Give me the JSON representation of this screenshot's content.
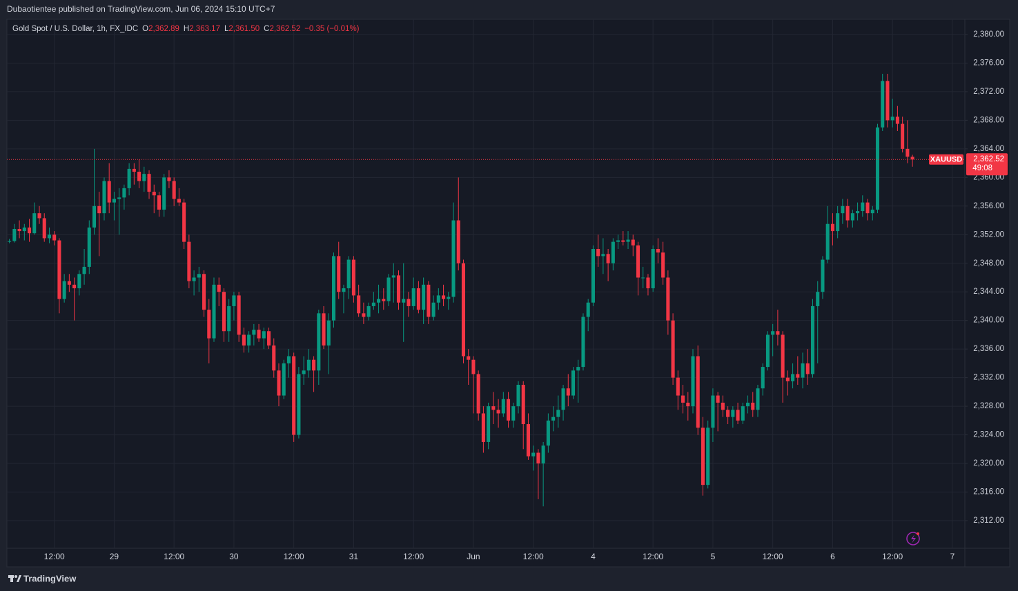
{
  "header": {
    "text": "Dubaotientee published on TradingView.com, Jun 06, 2024 15:10 UTC+7"
  },
  "footer": {
    "brand": "TradingView"
  },
  "chart_data": {
    "type": "candlestick",
    "legend": {
      "name": "Gold Spot / U.S. Dollar, 1h, FX_IDC",
      "open_label": "O",
      "open": "2,362.89",
      "high_label": "H",
      "high": "2,363.17",
      "low_label": "L",
      "low": "2,361.50",
      "close_label": "C",
      "close": "2,362.52",
      "change": "−0.35 (−0.01%)"
    },
    "price_tag": {
      "symbol": "XAUUSD",
      "price": "2,362.52",
      "countdown": "49:08"
    },
    "up_color": "#089981",
    "down_color": "#f23645",
    "grid": true,
    "xlim": [
      0.5,
      192.5
    ],
    "xticks": [
      {
        "value": 10,
        "label": "12:00"
      },
      {
        "value": 22,
        "label": "29"
      },
      {
        "value": 34,
        "label": "12:00"
      },
      {
        "value": 46,
        "label": "30"
      },
      {
        "value": 58,
        "label": "12:00"
      },
      {
        "value": 70,
        "label": "31"
      },
      {
        "value": 82,
        "label": "12:00"
      },
      {
        "value": 94,
        "label": "Jun"
      },
      {
        "value": 106,
        "label": "12:00"
      },
      {
        "value": 118,
        "label": "4"
      },
      {
        "value": 130,
        "label": "12:00"
      },
      {
        "value": 142,
        "label": "5"
      },
      {
        "value": 154,
        "label": "12:00"
      },
      {
        "value": 166,
        "label": "6"
      },
      {
        "value": 178,
        "label": "12:00"
      },
      {
        "value": 190,
        "label": "7"
      }
    ],
    "ylim": [
      2308.14,
      2382.12
    ],
    "yticks": [
      {
        "value": 2312,
        "label": "2,312.00"
      },
      {
        "value": 2316,
        "label": "2,316.00"
      },
      {
        "value": 2320,
        "label": "2,320.00"
      },
      {
        "value": 2324,
        "label": "2,324.00"
      },
      {
        "value": 2328,
        "label": "2,328.00"
      },
      {
        "value": 2332,
        "label": "2,332.00"
      },
      {
        "value": 2336,
        "label": "2,336.00"
      },
      {
        "value": 2340,
        "label": "2,340.00"
      },
      {
        "value": 2344,
        "label": "2,344.00"
      },
      {
        "value": 2348,
        "label": "2,348.00"
      },
      {
        "value": 2352,
        "label": "2,352.00"
      },
      {
        "value": 2356,
        "label": "2,356.00"
      },
      {
        "value": 2360,
        "label": "2,360.00"
      },
      {
        "value": 2364,
        "label": "2,364.00"
      },
      {
        "value": 2368,
        "label": "2,368.00"
      },
      {
        "value": 2372,
        "label": "2,372.00"
      },
      {
        "value": 2376,
        "label": "2,376.00"
      },
      {
        "value": 2380,
        "label": "2,380.00"
      }
    ],
    "ohlc": [
      [
        2351.0,
        2351.3,
        2350.8,
        2351.0
      ],
      [
        2351.0,
        2351.4,
        2350.8,
        2351.1
      ],
      [
        2351.1,
        2353.5,
        2350.9,
        2352.8
      ],
      [
        2352.8,
        2354.0,
        2351.5,
        2352.5
      ],
      [
        2352.5,
        2353.5,
        2351.2,
        2353.0
      ],
      [
        2353.0,
        2354.2,
        2351.0,
        2352.2
      ],
      [
        2352.2,
        2356.5,
        2352.0,
        2355.0
      ],
      [
        2355.0,
        2356.0,
        2353.5,
        2354.3
      ],
      [
        2354.3,
        2355.0,
        2351.0,
        2351.5
      ],
      [
        2351.5,
        2353.0,
        2350.8,
        2352.0
      ],
      [
        2352.0,
        2352.5,
        2350.5,
        2351.2
      ],
      [
        2351.2,
        2351.5,
        2341.0,
        2343.0
      ],
      [
        2343.0,
        2346.5,
        2342.5,
        2345.5
      ],
      [
        2345.5,
        2346.5,
        2344.0,
        2345.0
      ],
      [
        2345.0,
        2346.0,
        2340.0,
        2344.5
      ],
      [
        2344.5,
        2347.0,
        2343.5,
        2346.5
      ],
      [
        2346.5,
        2350.0,
        2345.0,
        2347.5
      ],
      [
        2347.5,
        2354.0,
        2346.5,
        2353.0
      ],
      [
        2353.0,
        2364.0,
        2352.0,
        2356.0
      ],
      [
        2356.0,
        2358.0,
        2349.0,
        2355.0
      ],
      [
        2355.0,
        2360.0,
        2354.0,
        2359.5
      ],
      [
        2359.5,
        2362.0,
        2355.0,
        2356.5
      ],
      [
        2356.5,
        2358.0,
        2354.0,
        2357.0
      ],
      [
        2357.0,
        2358.5,
        2352.0,
        2357.2
      ],
      [
        2357.2,
        2359.0,
        2355.5,
        2358.5
      ],
      [
        2358.5,
        2362.0,
        2357.5,
        2361.2
      ],
      [
        2361.2,
        2362.0,
        2359.0,
        2360.8
      ],
      [
        2360.8,
        2362.5,
        2358.5,
        2359.5
      ],
      [
        2359.5,
        2361.5,
        2358.0,
        2360.5
      ],
      [
        2360.5,
        2361.0,
        2357.0,
        2358.0
      ],
      [
        2358.0,
        2359.0,
        2355.0,
        2357.5
      ],
      [
        2357.5,
        2358.0,
        2354.5,
        2355.5
      ],
      [
        2355.5,
        2360.5,
        2354.5,
        2360.0
      ],
      [
        2360.0,
        2361.0,
        2358.5,
        2359.5
      ],
      [
        2359.5,
        2360.0,
        2356.0,
        2357.0
      ],
      [
        2357.0,
        2358.5,
        2356.0,
        2356.5
      ],
      [
        2356.5,
        2357.0,
        2350.0,
        2351.0
      ],
      [
        2351.0,
        2352.0,
        2344.5,
        2345.5
      ],
      [
        2345.5,
        2347.0,
        2343.5,
        2346.0
      ],
      [
        2346.0,
        2347.5,
        2344.0,
        2346.5
      ],
      [
        2346.5,
        2347.0,
        2340.5,
        2341.5
      ],
      [
        2341.5,
        2343.0,
        2334.0,
        2337.5
      ],
      [
        2337.5,
        2346.0,
        2337.0,
        2345.0
      ],
      [
        2345.0,
        2346.0,
        2342.0,
        2344.0
      ],
      [
        2344.0,
        2344.5,
        2337.0,
        2338.5
      ],
      [
        2338.5,
        2343.0,
        2337.0,
        2342.0
      ],
      [
        2342.0,
        2344.0,
        2340.0,
        2343.5
      ],
      [
        2343.5,
        2344.0,
        2337.0,
        2338.0
      ],
      [
        2338.0,
        2339.0,
        2335.5,
        2336.5
      ],
      [
        2336.5,
        2338.5,
        2335.5,
        2338.0
      ],
      [
        2338.0,
        2339.5,
        2336.5,
        2338.7
      ],
      [
        2338.7,
        2339.5,
        2337.0,
        2337.5
      ],
      [
        2337.5,
        2339.0,
        2336.0,
        2338.5
      ],
      [
        2338.5,
        2339.0,
        2336.0,
        2336.5
      ],
      [
        2336.5,
        2337.5,
        2332.0,
        2333.0
      ],
      [
        2333.0,
        2334.0,
        2328.0,
        2329.5
      ],
      [
        2329.5,
        2334.5,
        2329.0,
        2334.0
      ],
      [
        2334.0,
        2336.0,
        2332.0,
        2335.0
      ],
      [
        2335.0,
        2335.5,
        2323.0,
        2324.0
      ],
      [
        2324.0,
        2333.5,
        2323.5,
        2332.5
      ],
      [
        2332.5,
        2335.0,
        2331.0,
        2333.0
      ],
      [
        2333.0,
        2336.0,
        2332.0,
        2334.5
      ],
      [
        2334.5,
        2335.0,
        2330.0,
        2333.0
      ],
      [
        2333.0,
        2341.5,
        2331.0,
        2341.0
      ],
      [
        2341.0,
        2342.0,
        2336.0,
        2336.5
      ],
      [
        2336.5,
        2341.0,
        2332.5,
        2340.0
      ],
      [
        2340.0,
        2349.5,
        2339.0,
        2349.0
      ],
      [
        2349.0,
        2351.0,
        2343.0,
        2344.0
      ],
      [
        2344.0,
        2345.0,
        2341.0,
        2344.5
      ],
      [
        2344.5,
        2349.0,
        2343.0,
        2348.5
      ],
      [
        2348.5,
        2349.0,
        2342.5,
        2343.5
      ],
      [
        2343.5,
        2345.0,
        2340.5,
        2341.0
      ],
      [
        2341.0,
        2342.5,
        2339.5,
        2340.5
      ],
      [
        2340.5,
        2342.5,
        2340.0,
        2342.0
      ],
      [
        2342.0,
        2344.0,
        2341.5,
        2342.5
      ],
      [
        2342.5,
        2345.0,
        2341.0,
        2343.0
      ],
      [
        2343.0,
        2344.5,
        2341.5,
        2342.7
      ],
      [
        2342.7,
        2346.5,
        2342.0,
        2346.0
      ],
      [
        2346.0,
        2348.0,
        2342.5,
        2346.3
      ],
      [
        2346.3,
        2347.0,
        2341.5,
        2342.5
      ],
      [
        2342.5,
        2348.0,
        2337.0,
        2343.0
      ],
      [
        2343.0,
        2344.0,
        2340.5,
        2342.0
      ],
      [
        2342.0,
        2346.0,
        2341.5,
        2344.5
      ],
      [
        2344.5,
        2345.5,
        2341.0,
        2341.5
      ],
      [
        2341.5,
        2346.0,
        2339.5,
        2345.0
      ],
      [
        2345.0,
        2345.5,
        2339.5,
        2340.5
      ],
      [
        2340.5,
        2343.5,
        2340.0,
        2342.5
      ],
      [
        2342.5,
        2344.5,
        2341.5,
        2343.5
      ],
      [
        2343.5,
        2345.0,
        2342.0,
        2343.0
      ],
      [
        2343.0,
        2344.0,
        2341.5,
        2343.3
      ],
      [
        2343.3,
        2356.5,
        2342.5,
        2354.0
      ],
      [
        2354.0,
        2360.0,
        2347.0,
        2348.0
      ],
      [
        2348.0,
        2348.5,
        2334.0,
        2335.0
      ],
      [
        2335.0,
        2336.0,
        2331.0,
        2334.5
      ],
      [
        2334.5,
        2335.0,
        2327.0,
        2332.5
      ],
      [
        2332.5,
        2333.0,
        2326.0,
        2327.0
      ],
      [
        2327.0,
        2328.0,
        2321.5,
        2323.0
      ],
      [
        2323.0,
        2328.5,
        2322.0,
        2328.0
      ],
      [
        2328.0,
        2330.0,
        2325.5,
        2327.5
      ],
      [
        2327.5,
        2329.0,
        2325.0,
        2327.0
      ],
      [
        2327.0,
        2330.0,
        2326.5,
        2329.0
      ],
      [
        2329.0,
        2330.0,
        2325.0,
        2326.0
      ],
      [
        2326.0,
        2328.5,
        2325.0,
        2328.0
      ],
      [
        2328.0,
        2331.5,
        2327.0,
        2331.0
      ],
      [
        2331.0,
        2331.5,
        2322.0,
        2325.5
      ],
      [
        2325.5,
        2327.0,
        2320.5,
        2321.0
      ],
      [
        2321.0,
        2322.5,
        2319.0,
        2321.5
      ],
      [
        2321.5,
        2322.0,
        2315.0,
        2320.0
      ],
      [
        2320.0,
        2323.0,
        2314.0,
        2322.5
      ],
      [
        2322.5,
        2327.0,
        2321.5,
        2326.0
      ],
      [
        2326.0,
        2328.0,
        2324.5,
        2326.5
      ],
      [
        2326.5,
        2329.5,
        2325.0,
        2327.5
      ],
      [
        2327.5,
        2331.0,
        2326.0,
        2330.5
      ],
      [
        2330.5,
        2332.5,
        2328.0,
        2329.5
      ],
      [
        2329.5,
        2333.5,
        2329.0,
        2333.0
      ],
      [
        2333.0,
        2334.5,
        2328.5,
        2333.5
      ],
      [
        2333.5,
        2341.0,
        2333.0,
        2340.5
      ],
      [
        2340.5,
        2343.0,
        2338.5,
        2342.5
      ],
      [
        2342.5,
        2350.5,
        2342.0,
        2350.0
      ],
      [
        2350.0,
        2352.0,
        2347.5,
        2349.0
      ],
      [
        2349.0,
        2351.5,
        2346.5,
        2349.3
      ],
      [
        2349.3,
        2350.0,
        2345.5,
        2348.0
      ],
      [
        2348.0,
        2351.5,
        2347.0,
        2351.0
      ],
      [
        2351.0,
        2352.0,
        2350.0,
        2351.2
      ],
      [
        2351.2,
        2352.5,
        2350.5,
        2351.0
      ],
      [
        2351.0,
        2352.5,
        2350.0,
        2351.3
      ],
      [
        2351.3,
        2352.0,
        2349.0,
        2350.5
      ],
      [
        2350.5,
        2351.0,
        2343.5,
        2346.0
      ],
      [
        2346.0,
        2347.5,
        2344.5,
        2346.0
      ],
      [
        2346.0,
        2346.5,
        2343.5,
        2344.5
      ],
      [
        2344.5,
        2350.5,
        2344.0,
        2350.0
      ],
      [
        2350.0,
        2351.5,
        2348.0,
        2349.5
      ],
      [
        2349.5,
        2351.0,
        2345.0,
        2346.0
      ],
      [
        2346.0,
        2347.0,
        2338.0,
        2340.0
      ],
      [
        2340.0,
        2341.0,
        2331.0,
        2332.0
      ],
      [
        2332.0,
        2333.0,
        2327.5,
        2329.5
      ],
      [
        2329.5,
        2331.0,
        2327.0,
        2328.5
      ],
      [
        2328.5,
        2330.0,
        2326.0,
        2328.0
      ],
      [
        2328.0,
        2336.0,
        2327.0,
        2335.0
      ],
      [
        2335.0,
        2336.5,
        2324.0,
        2325.0
      ],
      [
        2325.0,
        2326.5,
        2315.5,
        2317.0
      ],
      [
        2317.0,
        2326.0,
        2316.5,
        2325.0
      ],
      [
        2325.0,
        2330.5,
        2323.0,
        2329.5
      ],
      [
        2329.5,
        2330.0,
        2324.5,
        2328.5
      ],
      [
        2328.5,
        2329.5,
        2326.5,
        2327.5
      ],
      [
        2327.5,
        2328.0,
        2325.5,
        2326.5
      ],
      [
        2326.5,
        2328.0,
        2325.0,
        2327.5
      ],
      [
        2327.5,
        2328.5,
        2325.5,
        2326.0
      ],
      [
        2326.0,
        2328.5,
        2325.5,
        2328.0
      ],
      [
        2328.0,
        2329.5,
        2327.0,
        2328.5
      ],
      [
        2328.5,
        2330.0,
        2326.5,
        2327.5
      ],
      [
        2327.5,
        2331.0,
        2326.5,
        2330.5
      ],
      [
        2330.5,
        2334.0,
        2329.5,
        2333.5
      ],
      [
        2333.5,
        2338.5,
        2333.0,
        2338.0
      ],
      [
        2338.0,
        2339.5,
        2335.0,
        2338.5
      ],
      [
        2338.5,
        2341.5,
        2336.5,
        2338.0
      ],
      [
        2338.0,
        2338.5,
        2328.5,
        2332.0
      ],
      [
        2332.0,
        2333.0,
        2329.5,
        2331.5
      ],
      [
        2331.5,
        2334.0,
        2330.5,
        2332.5
      ],
      [
        2332.5,
        2335.0,
        2331.0,
        2332.0
      ],
      [
        2332.0,
        2335.5,
        2330.5,
        2334.0
      ],
      [
        2334.0,
        2336.0,
        2331.0,
        2332.5
      ],
      [
        2332.5,
        2343.0,
        2332.0,
        2342.0
      ],
      [
        2342.0,
        2345.5,
        2334.0,
        2344.0
      ],
      [
        2344.0,
        2349.0,
        2343.0,
        2348.5
      ],
      [
        2348.5,
        2356.0,
        2348.0,
        2353.5
      ],
      [
        2353.5,
        2355.0,
        2350.5,
        2352.5
      ],
      [
        2352.5,
        2356.0,
        2351.5,
        2355.0
      ],
      [
        2355.0,
        2357.0,
        2353.5,
        2356.0
      ],
      [
        2356.0,
        2357.0,
        2353.0,
        2354.0
      ],
      [
        2354.0,
        2355.5,
        2353.0,
        2355.0
      ],
      [
        2355.0,
        2356.5,
        2354.0,
        2355.3
      ],
      [
        2355.3,
        2357.5,
        2354.5,
        2356.5
      ],
      [
        2356.5,
        2357.0,
        2354.0,
        2355.0
      ],
      [
        2355.0,
        2356.0,
        2354.0,
        2355.5
      ],
      [
        2355.5,
        2367.5,
        2355.0,
        2367.0
      ],
      [
        2367.0,
        2374.5,
        2366.5,
        2373.5
      ],
      [
        2373.5,
        2374.5,
        2367.0,
        2368.0
      ],
      [
        2368.0,
        2371.0,
        2367.0,
        2368.5
      ],
      [
        2368.5,
        2370.0,
        2366.5,
        2367.5
      ],
      [
        2367.5,
        2368.5,
        2363.5,
        2364.0
      ],
      [
        2364.0,
        2368.0,
        2362.0,
        2362.9
      ],
      [
        2362.89,
        2363.17,
        2361.5,
        2362.52
      ]
    ]
  }
}
